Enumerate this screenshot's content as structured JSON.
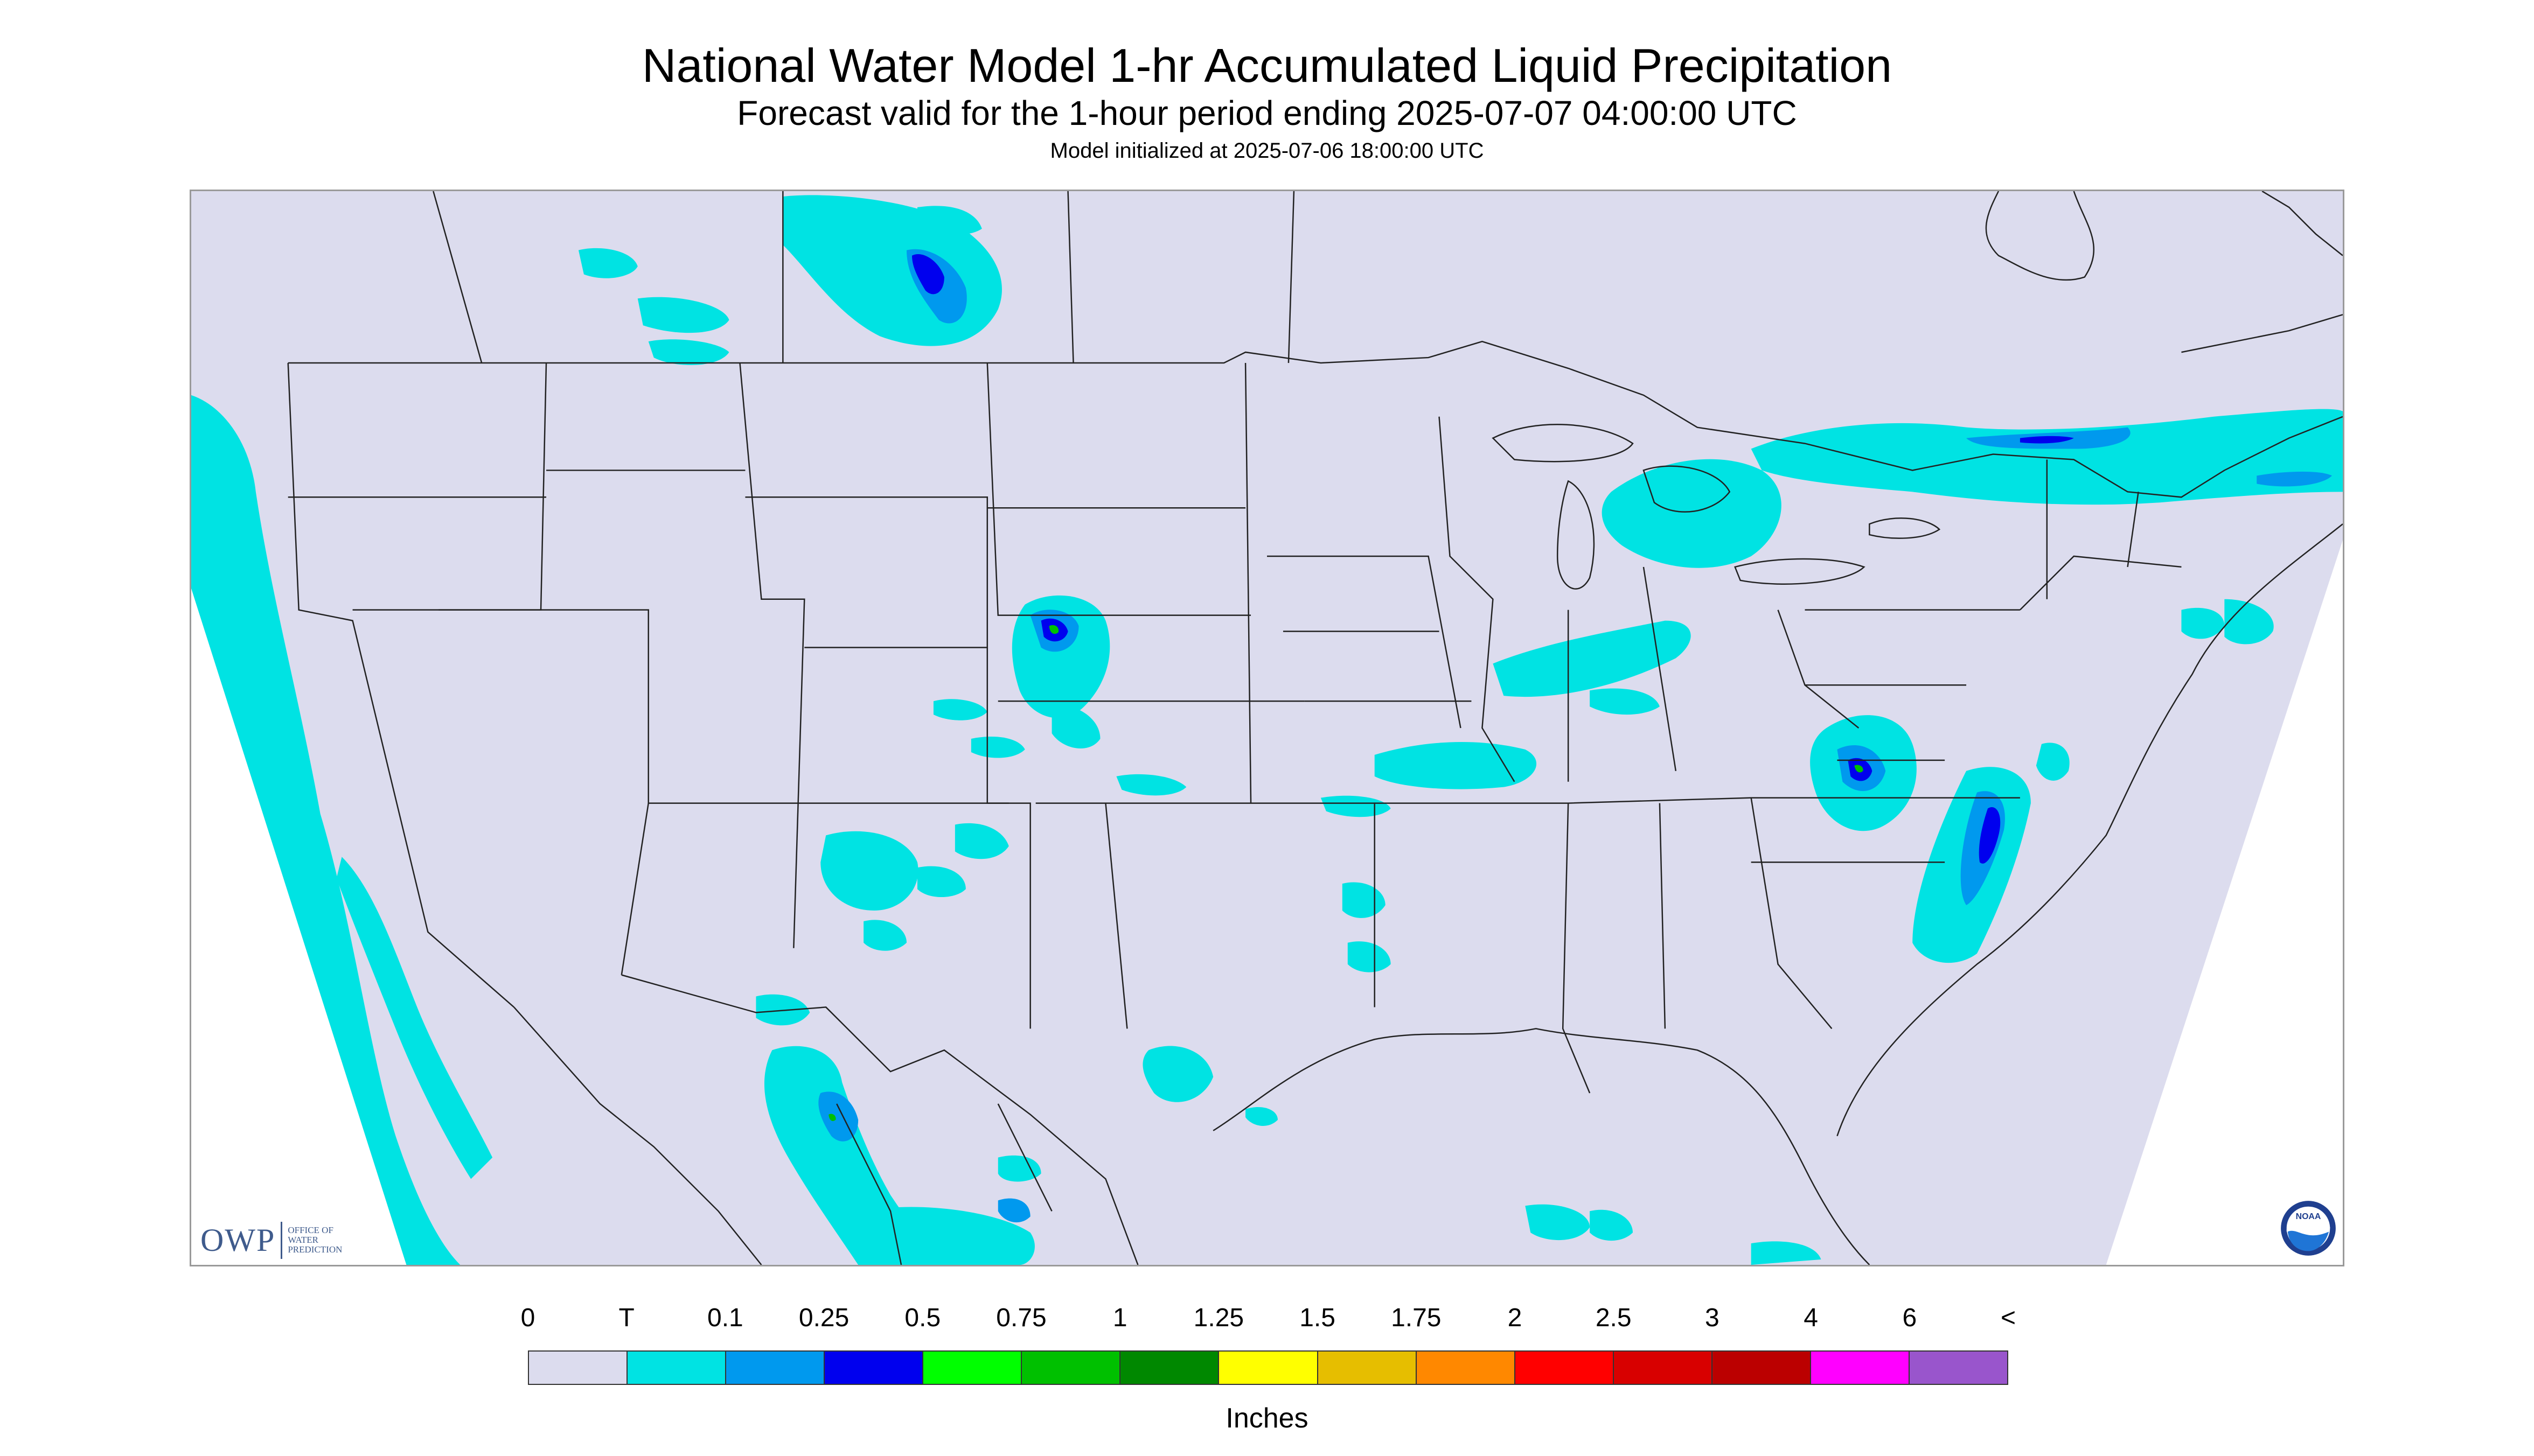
{
  "header": {
    "title": "National Water Model 1-hr Accumulated Liquid Precipitation",
    "subtitle": "Forecast valid for the 1-hour period ending 2025-07-07 04:00:00 UTC",
    "init_line": "Model initialized at 2025-07-06 18:00:00 UTC"
  },
  "logos": {
    "owp_mark": "OWP",
    "owp_lines": [
      "OFFICE OF",
      "WATER",
      "PREDICTION"
    ],
    "noaa_text": "NOAA"
  },
  "map": {
    "background_color": "#dcdcee",
    "outside_color": "#ffffff",
    "boundary_color": "#222222",
    "trace_color": "#00e3e3",
    "light_blue_color": "#0099ee",
    "blue_color": "#0000ee",
    "green_color": "#00c000"
  },
  "colorbar": {
    "units": "Inches",
    "tick_labels": [
      "0",
      "T",
      "0.1",
      "0.25",
      "0.5",
      "0.75",
      "1",
      "1.25",
      "1.5",
      "1.75",
      "2",
      "2.5",
      "3",
      "4",
      "6",
      "<"
    ],
    "colors": [
      "#dcdcee",
      "#00e3e3",
      "#0099ee",
      "#0000ee",
      "#00ff00",
      "#00c000",
      "#008800",
      "#ffff00",
      "#e6be00",
      "#ff8800",
      "#ff0000",
      "#d80000",
      "#bb0000",
      "#ff00ff",
      "#9955cc"
    ]
  }
}
